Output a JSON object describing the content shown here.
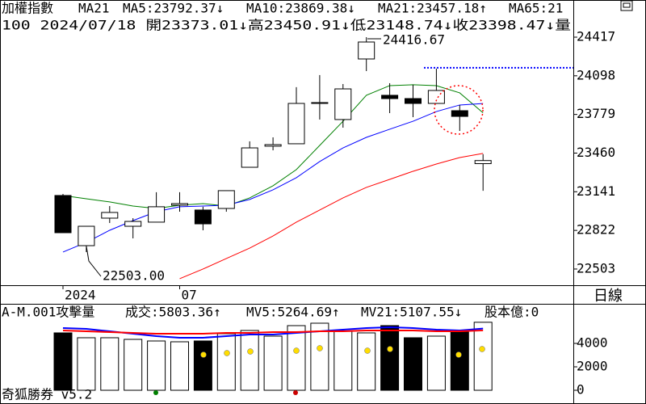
{
  "header": {
    "title": "加權指數",
    "period": "MA21",
    "extra": "MA65:21",
    "info": "100 2024/07/18 開23373.01↓高23450.91↓低23148.74↓收23398.47↓量",
    "timeframe": "日線",
    "footer": "奇狐勝券 v5.2"
  },
  "chart_data": [
    {
      "type": "candlestick",
      "categories": [
        "2024",
        null,
        null,
        null,
        null,
        "07",
        null,
        null,
        null,
        null,
        null,
        null,
        null,
        null,
        null,
        null,
        null,
        null,
        null
      ],
      "open": [
        23110,
        22696,
        22923,
        22856,
        22890,
        23030,
        22990,
        23003,
        23343,
        23517,
        23537,
        23870,
        23737,
        24237,
        23937,
        23910,
        23870,
        23810,
        23373.01
      ],
      "high": [
        23123,
        22856,
        23023,
        22923,
        23137,
        23137,
        23017,
        23150,
        23557,
        23590,
        24004,
        24104,
        24030,
        24416.67,
        24037,
        24024,
        24157,
        23857,
        23450.91
      ],
      "low": [
        22803,
        22643,
        22883,
        22756,
        22890,
        22976,
        22823,
        22976,
        23343,
        23483,
        23537,
        23737,
        23670,
        24137,
        23790,
        23757,
        23870,
        23643,
        23148.74
      ],
      "close": [
        22803,
        22856,
        22970,
        22896,
        23017,
        23043,
        22876,
        23150,
        23503,
        23530,
        23870,
        23877,
        23990,
        24377,
        23910,
        23870,
        23977,
        23763,
        23398.47
      ],
      "up_color": "#ffffff",
      "down_color": "#000000",
      "series": [
        {
          "name": "MA5:23792.37↓",
          "color": "#008000",
          "values": [
            23110,
            23083,
            23057,
            23023,
            23003,
            23030,
            23043,
            23023,
            23090,
            23190,
            23324,
            23523,
            23723,
            23937,
            24017,
            24024,
            24017,
            23957,
            23792.37
          ]
        },
        {
          "name": "MA10:23869.38↓",
          "color": "#0000ff",
          "values": [
            22643,
            22723,
            22823,
            22903,
            22976,
            23017,
            23023,
            23030,
            23077,
            23157,
            23257,
            23390,
            23503,
            23590,
            23657,
            23723,
            23803,
            23857,
            23869.38
          ]
        },
        {
          "name": "MA21:23457.18↑",
          "color": "#ff0000",
          "values": [
            null,
            null,
            null,
            null,
            null,
            22423,
            22503,
            22590,
            22676,
            22776,
            22890,
            22990,
            23090,
            23177,
            23243,
            23310,
            23370,
            23423,
            23457.18
          ]
        }
      ],
      "reference_line": 24164,
      "annotations": [
        "24416.67",
        "22503.00"
      ],
      "ylim": [
        22376,
        24577
      ],
      "yticks": [
        22503,
        22822,
        23141,
        23460,
        23779,
        24098,
        24417
      ]
    },
    {
      "type": "bar",
      "name": "A-M.001攻擊量",
      "value_label": "成交:5803.36↑",
      "extra": "股本億:0",
      "values": [
        4897,
        4483,
        4483,
        4345,
        4207,
        4138,
        4207,
        4828,
        5103,
        4621,
        5517,
        5724,
        5034,
        4897,
        5517,
        4483,
        4621,
        5103,
        5803.36
      ],
      "series": [
        {
          "name": "MV5:5264.69↑",
          "color": "#0000ff",
          "values": [
            5310,
            5241,
            5034,
            4828,
            4621,
            4483,
            4483,
            4621,
            4759,
            4759,
            4897,
            5034,
            5172,
            5310,
            5379,
            5310,
            5172,
            5103,
            5264.69
          ]
        },
        {
          "name": "MV21:5107.55↓",
          "color": "#ff0000",
          "values": [
            5103,
            5034,
            4966,
            4897,
            4828,
            4828,
            4828,
            4897,
            4897,
            4966,
            4966,
            5034,
            5034,
            5103,
            5103,
            5103,
            5034,
            5034,
            5107.55
          ]
        }
      ],
      "ylim": [
        -1172,
        7241
      ],
      "yticks": [
        0,
        2000,
        4000
      ]
    }
  ]
}
